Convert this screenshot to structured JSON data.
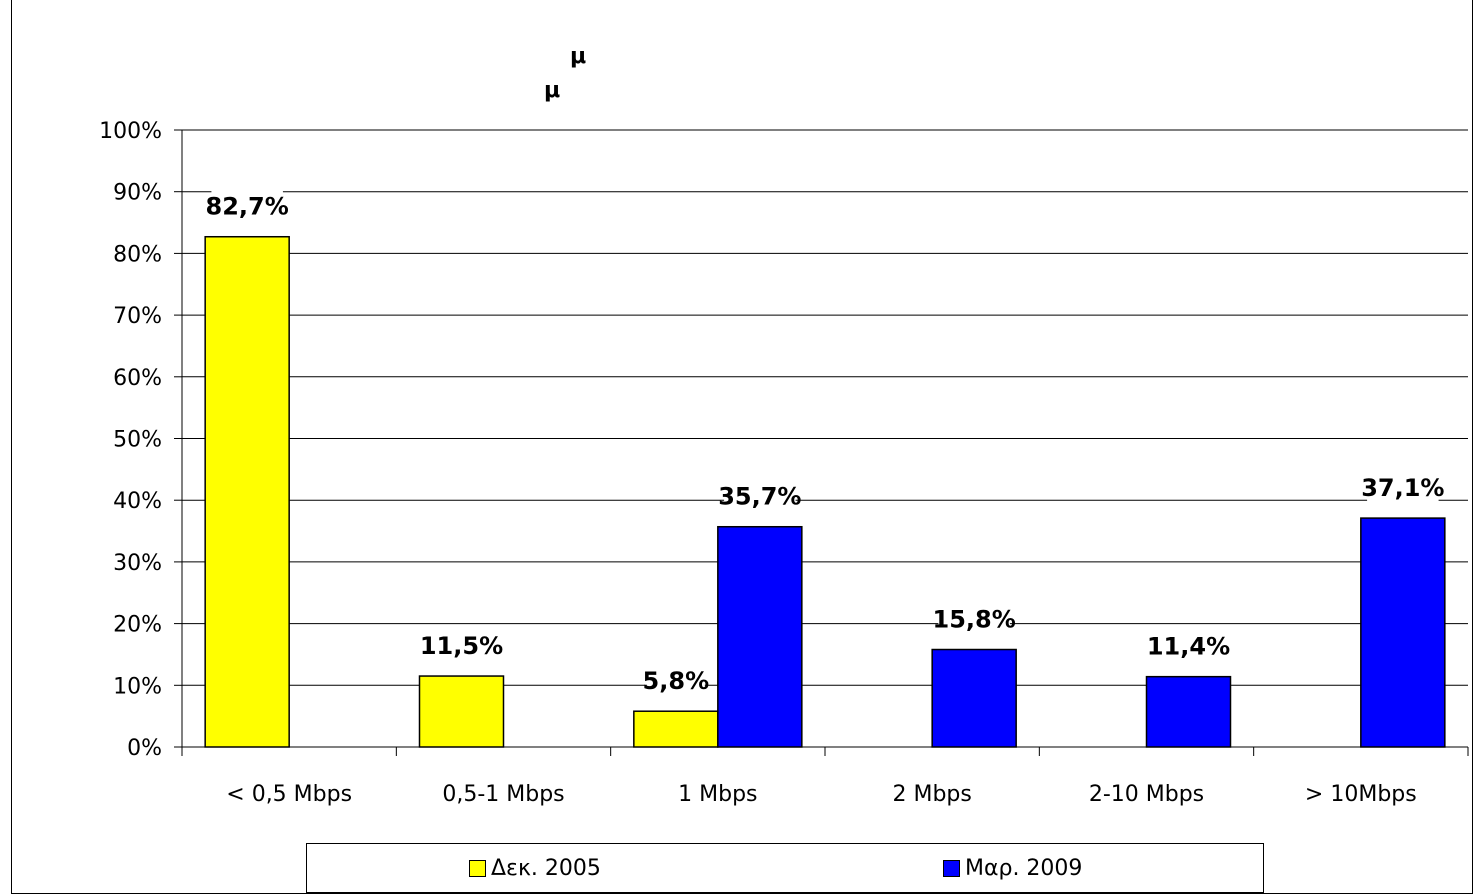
{
  "chart_data": {
    "type": "bar",
    "title_glyphs": [
      "μ",
      "μ"
    ],
    "categories": [
      "< 0,5 Mbps",
      "0,5-1 Mbps",
      "1 Mbps",
      "2 Mbps",
      "2-10 Mbps",
      "> 10Mbps"
    ],
    "series": [
      {
        "name": "Δεκ. 2005",
        "color": "#ffff00",
        "values": [
          82.7,
          11.5,
          5.8,
          null,
          null,
          null
        ],
        "labels": [
          "82,7%",
          "11,5%",
          "5,8%",
          null,
          null,
          null
        ]
      },
      {
        "name": "Μαρ. 2009",
        "color": "#0000ff",
        "values": [
          null,
          null,
          35.7,
          15.8,
          11.4,
          37.1
        ],
        "labels": [
          null,
          null,
          "35,7%",
          "15,8%",
          "11,4%",
          "37,1%"
        ]
      }
    ],
    "y_ticks": [
      "0%",
      "10%",
      "20%",
      "30%",
      "40%",
      "50%",
      "60%",
      "70%",
      "80%",
      "90%",
      "100%"
    ],
    "ylim": [
      0,
      100
    ],
    "grid": true,
    "legend_position": "bottom"
  }
}
